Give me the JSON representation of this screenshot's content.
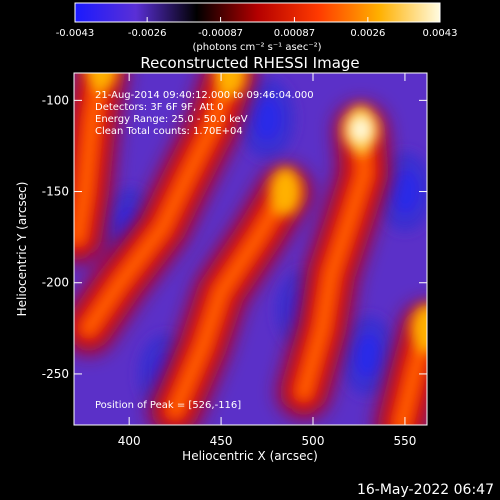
{
  "footer": {
    "date": "16-May-2022 06:47"
  },
  "colorbar": {
    "tick_labels": [
      "-0.0043",
      "-0.0026",
      "-0.00087",
      "0.00087",
      "0.0026",
      "0.0043"
    ],
    "tick_values": [
      -0.0043,
      -0.0026,
      -0.00087,
      0.00087,
      0.0026,
      0.0043
    ],
    "unit_label": "(photons cm⁻² s⁻¹ asec⁻²)",
    "range": [
      -0.0043,
      0.0043
    ],
    "colors": [
      "#1a1aff",
      "#5a2fd6",
      "#000000",
      "#b40000",
      "#ff3a00",
      "#ffb000",
      "#fffbe0"
    ]
  },
  "chart_data": {
    "type": "heatmap",
    "title": "Reconstructed RHESSI Image",
    "xlabel": "Heliocentric X (arcsec)",
    "ylabel": "Heliocentric Y (arcsec)",
    "xlim": [
      370,
      562
    ],
    "ylim": [
      -278,
      -85
    ],
    "xticks": [
      400,
      450,
      500,
      550
    ],
    "yticks": [
      -100,
      -150,
      -200,
      -250
    ],
    "annotations": [
      "21-Aug-2014 09:40:12.000 to 09:46:04.000",
      "Detectors: 3F 6F 9F, Att 0",
      "Energy Range: 25.0 - 50.0 keV",
      "Clean    Total counts: 1.70E+04"
    ],
    "peak_label": "Position of Peak = [526,-116]",
    "peak": [
      526,
      -116
    ],
    "bright_ridges": [
      {
        "points": [
          [
            385,
            -82
          ],
          [
            380,
            -110
          ],
          [
            376,
            -150
          ],
          [
            372,
            -175
          ]
        ]
      },
      {
        "points": [
          [
            455,
            -85
          ],
          [
            445,
            -115
          ],
          [
            430,
            -145
          ],
          [
            418,
            -170
          ],
          [
            395,
            -200
          ],
          [
            378,
            -225
          ]
        ]
      },
      {
        "points": [
          [
            485,
            -150
          ],
          [
            470,
            -175
          ],
          [
            450,
            -205
          ],
          [
            440,
            -235
          ],
          [
            425,
            -270
          ]
        ]
      },
      {
        "points": [
          [
            526,
            -116
          ],
          [
            528,
            -140
          ],
          [
            520,
            -165
          ],
          [
            510,
            -195
          ],
          [
            505,
            -225
          ],
          [
            495,
            -260
          ]
        ]
      },
      {
        "points": [
          [
            562,
            -225
          ],
          [
            555,
            -250
          ],
          [
            548,
            -278
          ]
        ]
      }
    ],
    "dark_lobes": [
      {
        "center": [
          400,
          -170
        ]
      },
      {
        "center": [
          475,
          -110
        ]
      },
      {
        "center": [
          420,
          -250
        ]
      },
      {
        "center": [
          530,
          -240
        ]
      },
      {
        "center": [
          550,
          -150
        ]
      },
      {
        "center": [
          495,
          -215
        ]
      }
    ]
  }
}
